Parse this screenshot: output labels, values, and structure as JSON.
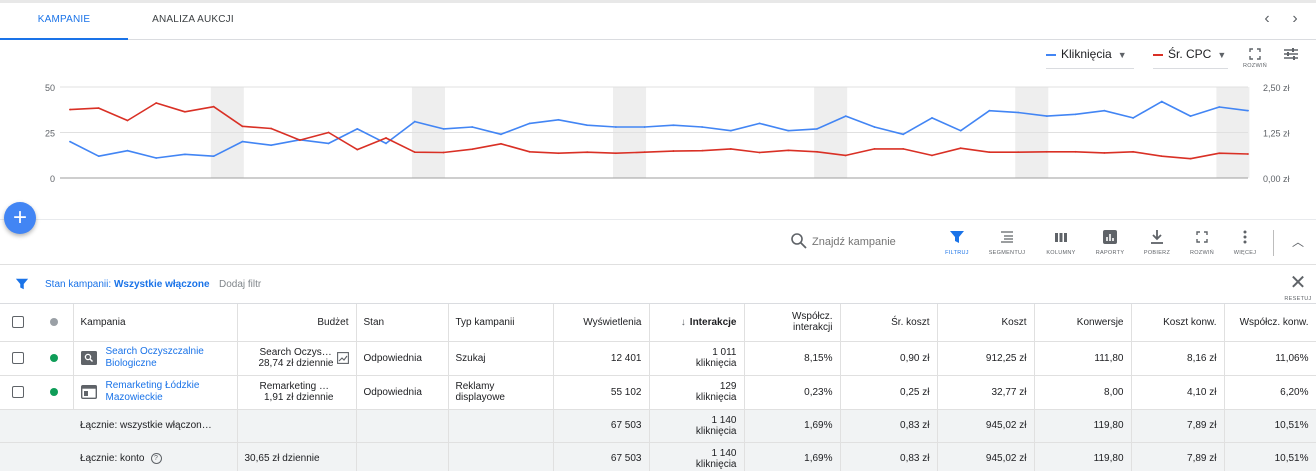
{
  "tabs": [
    {
      "label": "KAMPANIE",
      "active": true
    },
    {
      "label": "ANALIZA AUKCJI",
      "active": false
    }
  ],
  "chart_data": {
    "type": "line",
    "title": "",
    "metrics": [
      {
        "name": "Kliknięcia",
        "color": "#4285f4",
        "axis": "left",
        "values": [
          20,
          12,
          15,
          11,
          13,
          12,
          20,
          18,
          21,
          19,
          27,
          19,
          31,
          27,
          28,
          24,
          30,
          32,
          29,
          28,
          28,
          29,
          28,
          26,
          30,
          26,
          27,
          34,
          28,
          24,
          33,
          26,
          37,
          36,
          34,
          35,
          37,
          33,
          42,
          34,
          39,
          37
        ]
      },
      {
        "name": "Śr. CPC",
        "color": "#d93025",
        "axis": "right",
        "values": [
          1.88,
          1.92,
          1.58,
          2.06,
          1.82,
          1.96,
          1.42,
          1.36,
          1.04,
          1.25,
          0.78,
          1.1,
          0.71,
          0.7,
          0.79,
          0.94,
          0.72,
          0.68,
          0.71,
          0.68,
          0.71,
          0.74,
          0.75,
          0.8,
          0.7,
          0.76,
          0.72,
          0.62,
          0.8,
          0.8,
          0.62,
          0.82,
          0.71,
          0.71,
          0.72,
          0.72,
          0.69,
          0.72,
          0.6,
          0.53,
          0.68,
          0.66
        ]
      }
    ],
    "y_left": {
      "ticks": [
        "50",
        "25",
        "0"
      ],
      "range": [
        0,
        50
      ]
    },
    "y_right": {
      "ticks": [
        "2,50 zł",
        "1,25 zł",
        "0,00 zł"
      ],
      "range": [
        0,
        2.5
      ]
    },
    "weekend_bands_start_index": [
      5,
      12,
      19,
      26,
      33,
      40
    ]
  },
  "chart_controls": {
    "metric1": "Kliknięcia",
    "metric2": "Śr. CPC",
    "expand_label": "ROZWIŃ"
  },
  "colors": {
    "blue": "#4285f4",
    "red": "#d93025",
    "link": "#1a73e8",
    "green": "#0f9d58"
  },
  "toolbar": {
    "search_placeholder": "Znajdź kampanie",
    "buttons": [
      {
        "label": "FILTRUJ",
        "icon": "filter-icon"
      },
      {
        "label": "SEGMENTUJ",
        "icon": "segment-icon"
      },
      {
        "label": "KOLUMNY",
        "icon": "columns-icon"
      },
      {
        "label": "RAPORTY",
        "icon": "reports-icon"
      },
      {
        "label": "POBIERZ",
        "icon": "download-icon"
      },
      {
        "label": "ROZWIŃ",
        "icon": "expand-icon"
      },
      {
        "label": "WIĘCEJ",
        "icon": "more-icon"
      }
    ]
  },
  "filter": {
    "prefix": "Stan kampanii: ",
    "value": "Wszystkie włączone",
    "add": "Dodaj filtr",
    "reset": "RESETUJ"
  },
  "table": {
    "headers": {
      "campaign": "Kampania",
      "budget": "Budżet",
      "status": "Stan",
      "type": "Typ kampanii",
      "impressions": "Wyświetlenia",
      "interactions": "Interakcje",
      "interaction_rate": "Współcz. interakcji",
      "avg_cost": "Śr. koszt",
      "cost": "Koszt",
      "conversions": "Konwersje",
      "cost_per_conv": "Koszt konw.",
      "conv_rate": "Współcz. konw."
    },
    "rows": [
      {
        "campaign": "Search Oczyszczalnie Biologiczne",
        "campaign_icon": "search-campaign-icon",
        "budget_name": "Search Oczysz…",
        "budget_daily": "28,74 zł dziennie",
        "status": "Odpowiednia",
        "type": "Szukaj",
        "impressions": "12 401",
        "interactions": "1 011",
        "interactions_unit": "kliknięcia",
        "interaction_rate": "8,15%",
        "avg_cost": "0,90 zł",
        "cost": "912,25 zł",
        "conversions": "111,80",
        "cost_per_conv": "8,16 zł",
        "conv_rate": "11,06%"
      },
      {
        "campaign": "Remarketing Łódzkie Mazowieckie",
        "campaign_icon": "display-campaign-icon",
        "budget_name": "Remarketing Łódz…",
        "budget_daily": "1,91 zł dziennie",
        "status": "Odpowiednia",
        "type": "Reklamy displayowe",
        "impressions": "55 102",
        "interactions": "129",
        "interactions_unit": "kliknięcia",
        "interaction_rate": "0,23%",
        "avg_cost": "0,25 zł",
        "cost": "32,77 zł",
        "conversions": "8,00",
        "cost_per_conv": "4,10 zł",
        "conv_rate": "6,20%"
      }
    ],
    "totals": [
      {
        "label": "Łącznie: wszystkie włączon…",
        "budget": "",
        "impressions": "67 503",
        "interactions": "1 140",
        "interactions_unit": "kliknięcia",
        "interaction_rate": "1,69%",
        "avg_cost": "0,83 zł",
        "cost": "945,02 zł",
        "conversions": "119,80",
        "cost_per_conv": "7,89 zł",
        "conv_rate": "10,51%"
      },
      {
        "label": "Łącznie: konto",
        "budget": "30,65 zł dziennie",
        "impressions": "67 503",
        "interactions": "1 140",
        "interactions_unit": "kliknięcia",
        "interaction_rate": "1,69%",
        "avg_cost": "0,83 zł",
        "cost": "945,02 zł",
        "conversions": "119,80",
        "cost_per_conv": "7,89 zł",
        "conv_rate": "10,51%"
      }
    ]
  }
}
